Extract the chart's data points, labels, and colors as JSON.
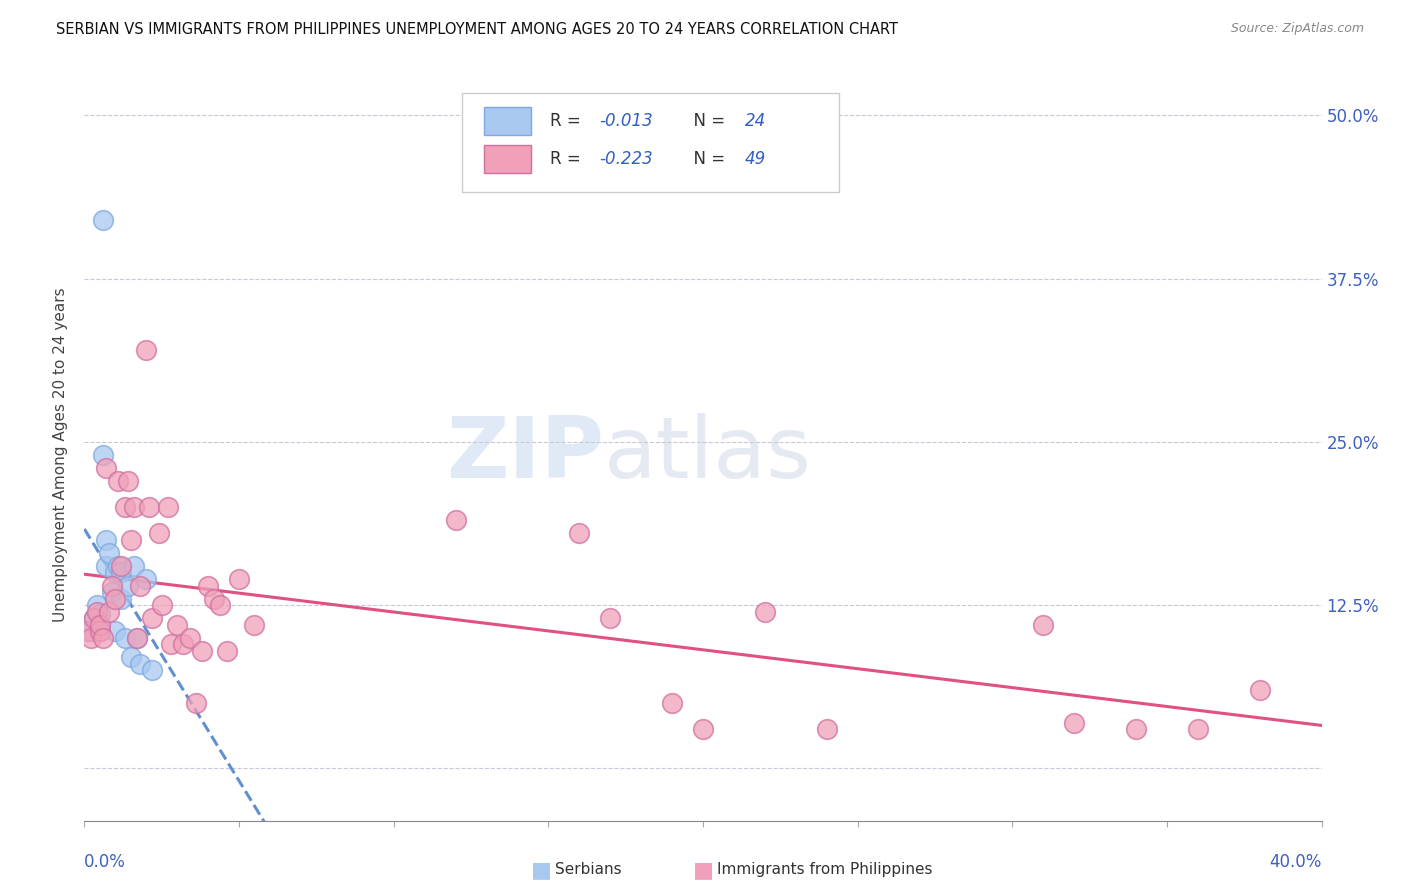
{
  "title": "SERBIAN VS IMMIGRANTS FROM PHILIPPINES UNEMPLOYMENT AMONG AGES 20 TO 24 YEARS CORRELATION CHART",
  "source": "Source: ZipAtlas.com",
  "ylabel": "Unemployment Among Ages 20 to 24 years",
  "watermark_zip": "ZIP",
  "watermark_atlas": "atlas",
  "serbian_color": "#a8c8f0",
  "serbian_edge": "#80a8e0",
  "philippines_color": "#f0a0b8",
  "philippines_edge": "#d070a0",
  "trend_serbian_color": "#6090d0",
  "trend_philippines_color": "#e05080",
  "axis_color": "#4060c0",
  "grid_color": "#c8c8d8",
  "legend_r_color": "#3060c0",
  "legend_n_color": "#3060c0",
  "serbian_x": [
    0.002,
    0.003,
    0.004,
    0.005,
    0.005,
    0.006,
    0.006,
    0.007,
    0.007,
    0.008,
    0.009,
    0.01,
    0.01,
    0.011,
    0.012,
    0.012,
    0.013,
    0.014,
    0.015,
    0.016,
    0.017,
    0.018,
    0.02,
    0.022
  ],
  "serbian_y": [
    0.105,
    0.115,
    0.125,
    0.118,
    0.105,
    0.42,
    0.24,
    0.175,
    0.155,
    0.165,
    0.135,
    0.15,
    0.105,
    0.155,
    0.15,
    0.13,
    0.1,
    0.14,
    0.085,
    0.155,
    0.1,
    0.08,
    0.145,
    0.075
  ],
  "philippines_x": [
    0.001,
    0.002,
    0.003,
    0.004,
    0.005,
    0.005,
    0.006,
    0.007,
    0.008,
    0.009,
    0.01,
    0.011,
    0.012,
    0.013,
    0.014,
    0.015,
    0.016,
    0.017,
    0.018,
    0.02,
    0.021,
    0.022,
    0.024,
    0.025,
    0.027,
    0.028,
    0.03,
    0.032,
    0.034,
    0.036,
    0.038,
    0.04,
    0.042,
    0.044,
    0.046,
    0.05,
    0.055,
    0.12,
    0.16,
    0.17,
    0.19,
    0.2,
    0.22,
    0.24,
    0.31,
    0.32,
    0.34,
    0.36,
    0.38
  ],
  "philippines_y": [
    0.105,
    0.1,
    0.115,
    0.12,
    0.105,
    0.11,
    0.1,
    0.23,
    0.12,
    0.14,
    0.13,
    0.22,
    0.155,
    0.2,
    0.22,
    0.175,
    0.2,
    0.1,
    0.14,
    0.32,
    0.2,
    0.115,
    0.18,
    0.125,
    0.2,
    0.095,
    0.11,
    0.095,
    0.1,
    0.05,
    0.09,
    0.14,
    0.13,
    0.125,
    0.09,
    0.145,
    0.11,
    0.19,
    0.18,
    0.115,
    0.05,
    0.03,
    0.12,
    0.03,
    0.11,
    0.035,
    0.03,
    0.03,
    0.06
  ],
  "xmin": 0.0,
  "xmax": 0.4,
  "ymin": -0.04,
  "ymax": 0.52,
  "yticks": [
    0.0,
    0.125,
    0.25,
    0.375,
    0.5
  ],
  "yticklabels": [
    "",
    "12.5%",
    "25.0%",
    "37.5%",
    "50.0%"
  ]
}
